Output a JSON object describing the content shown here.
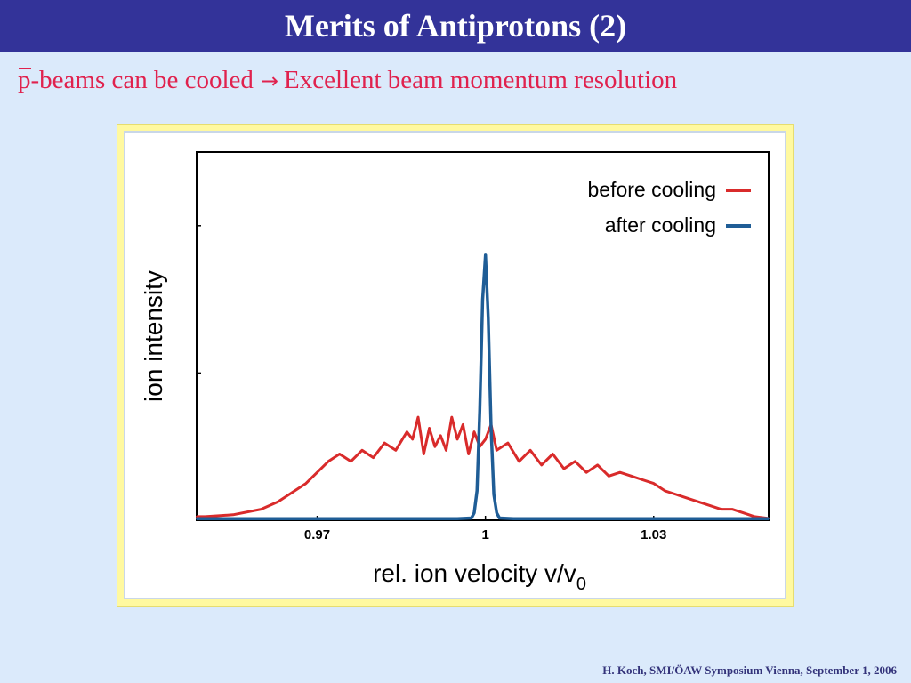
{
  "slide": {
    "title": "Merits of Antiprotons (2)",
    "subtitle": {
      "symbol": "p",
      "lead": "-beams can be cooled",
      "arrow": "→",
      "tail": "Excellent beam momentum resolution"
    },
    "footer": "H. Koch, SMI/ÖAW Symposium Vienna, September 1, 2006"
  },
  "colors": {
    "title_bar": "#333399",
    "subtitle_text": "#e0224e",
    "before_cooling": "#d92b2b",
    "after_cooling": "#1f5d96"
  },
  "chart_data": {
    "type": "line",
    "xlabel": "rel. ion velocity v/v",
    "xlabel_subscript": "0",
    "ylabel": "ion intensity",
    "xlim": [
      0.9485,
      1.0505
    ],
    "ylim": [
      0,
      1
    ],
    "x_tick_labels": [
      {
        "value": 0.97,
        "label": "0.97"
      },
      {
        "value": 1.0,
        "label": "1"
      },
      {
        "value": 1.03,
        "label": "1.03"
      }
    ],
    "y_ticks_unlabeled": [
      0.4,
      0.8
    ],
    "grid": false,
    "legend_position": "top-right",
    "series": [
      {
        "name": "before cooling",
        "color": "#d92b2b",
        "x": [
          0.9485,
          0.95,
          0.955,
          0.96,
          0.963,
          0.966,
          0.968,
          0.97,
          0.972,
          0.974,
          0.976,
          0.978,
          0.98,
          0.982,
          0.984,
          0.986,
          0.987,
          0.988,
          0.989,
          0.99,
          0.991,
          0.992,
          0.993,
          0.994,
          0.995,
          0.996,
          0.997,
          0.998,
          0.999,
          1.0,
          1.001,
          1.002,
          1.004,
          1.006,
          1.008,
          1.01,
          1.012,
          1.014,
          1.016,
          1.018,
          1.02,
          1.022,
          1.024,
          1.026,
          1.028,
          1.03,
          1.032,
          1.034,
          1.036,
          1.038,
          1.04,
          1.042,
          1.044,
          1.046,
          1.048,
          1.0505
        ],
        "values": [
          0.01,
          0.01,
          0.015,
          0.03,
          0.05,
          0.08,
          0.1,
          0.13,
          0.16,
          0.18,
          0.16,
          0.19,
          0.17,
          0.21,
          0.19,
          0.24,
          0.22,
          0.28,
          0.18,
          0.25,
          0.2,
          0.23,
          0.19,
          0.28,
          0.22,
          0.26,
          0.18,
          0.24,
          0.2,
          0.22,
          0.26,
          0.19,
          0.21,
          0.16,
          0.19,
          0.15,
          0.18,
          0.14,
          0.16,
          0.13,
          0.15,
          0.12,
          0.13,
          0.12,
          0.11,
          0.1,
          0.08,
          0.07,
          0.06,
          0.05,
          0.04,
          0.03,
          0.03,
          0.02,
          0.01,
          0.005
        ]
      },
      {
        "name": "after cooling",
        "color": "#1f5d96",
        "x": [
          0.9485,
          0.97,
          0.995,
          0.9975,
          0.998,
          0.9985,
          0.999,
          0.9995,
          1.0,
          1.0005,
          1.001,
          1.0015,
          1.002,
          1.0025,
          1.005,
          1.03,
          1.0505
        ],
        "values": [
          0.004,
          0.004,
          0.004,
          0.006,
          0.02,
          0.08,
          0.3,
          0.6,
          0.72,
          0.55,
          0.25,
          0.07,
          0.02,
          0.006,
          0.004,
          0.004,
          0.004
        ]
      }
    ]
  }
}
